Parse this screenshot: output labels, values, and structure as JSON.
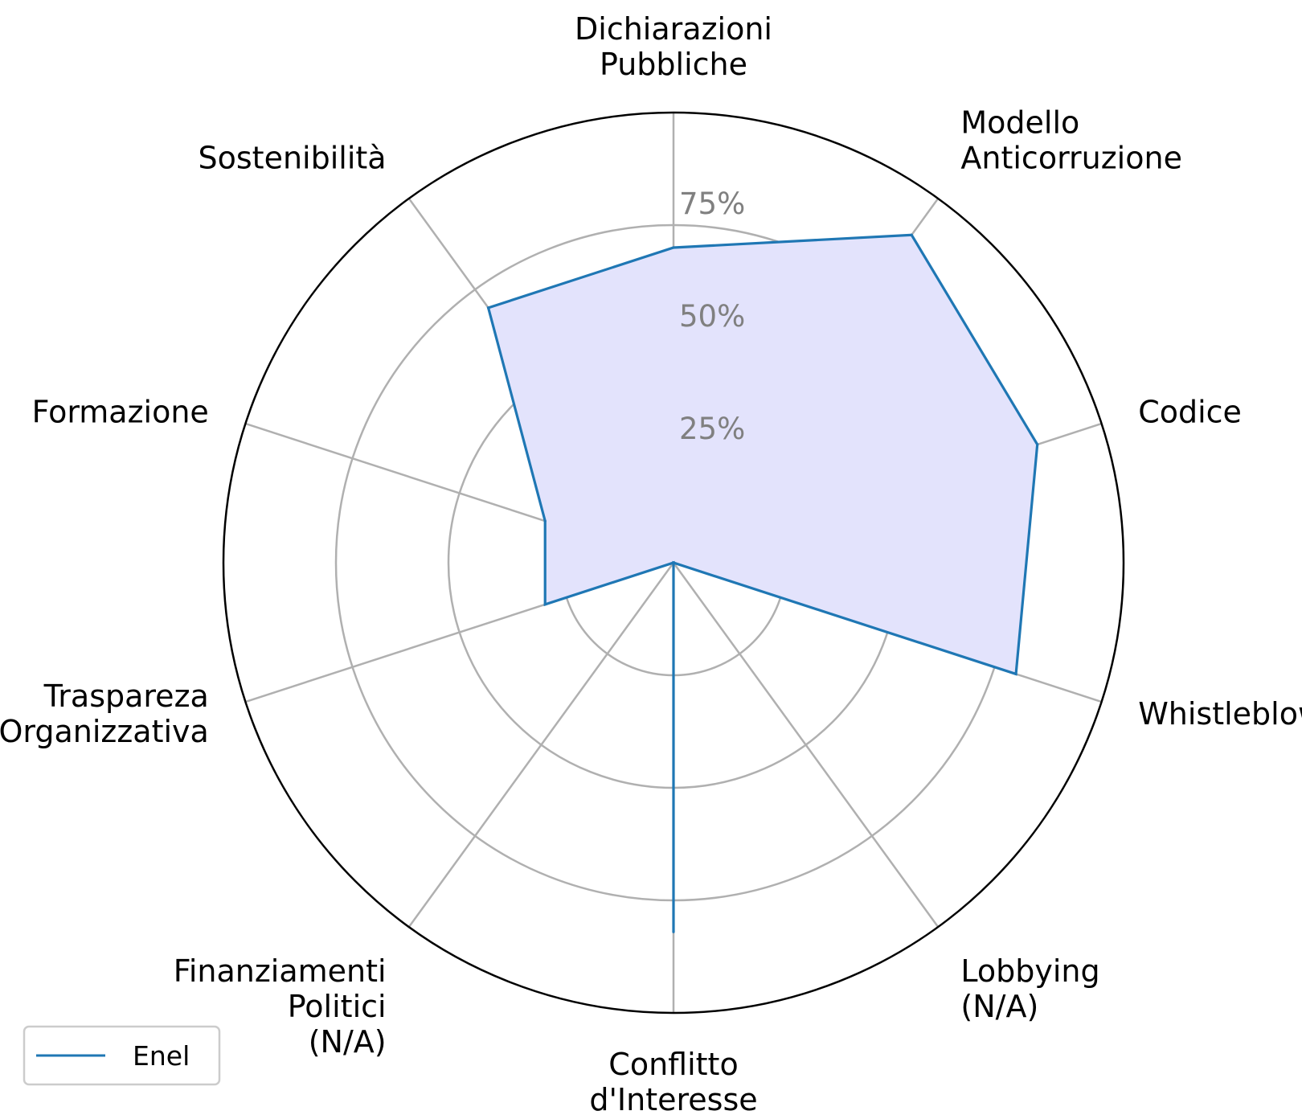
{
  "chart_data": {
    "type": "radar",
    "categories": [
      [
        "Dichiarazioni",
        "Pubbliche"
      ],
      [
        "Modello",
        "Anticorruzione"
      ],
      [
        "Codice"
      ],
      [
        "Whistleblowing"
      ],
      [
        "Lobbying",
        "(N/A)"
      ],
      [
        "Conflitto",
        "d'Interesse"
      ],
      [
        "Finanziamenti",
        "Politici",
        "(N/A)"
      ],
      [
        "Traspareza",
        "Organizzativa"
      ],
      [
        "Formazione"
      ],
      [
        "Sostenibilità"
      ]
    ],
    "rlim": [
      0,
      100
    ],
    "radial_ticks": [
      25,
      50,
      75,
      100
    ],
    "radial_tick_labels": [
      "25%",
      "50%",
      "75%"
    ],
    "series": [
      {
        "name": "Enel",
        "values": [
          70,
          90,
          85,
          80,
          0,
          82,
          0,
          30,
          30,
          70
        ],
        "line_color": "#1f77b4",
        "fill_color": "#e3e3fc"
      }
    ],
    "legend_position": "lower-left",
    "grid": true
  }
}
